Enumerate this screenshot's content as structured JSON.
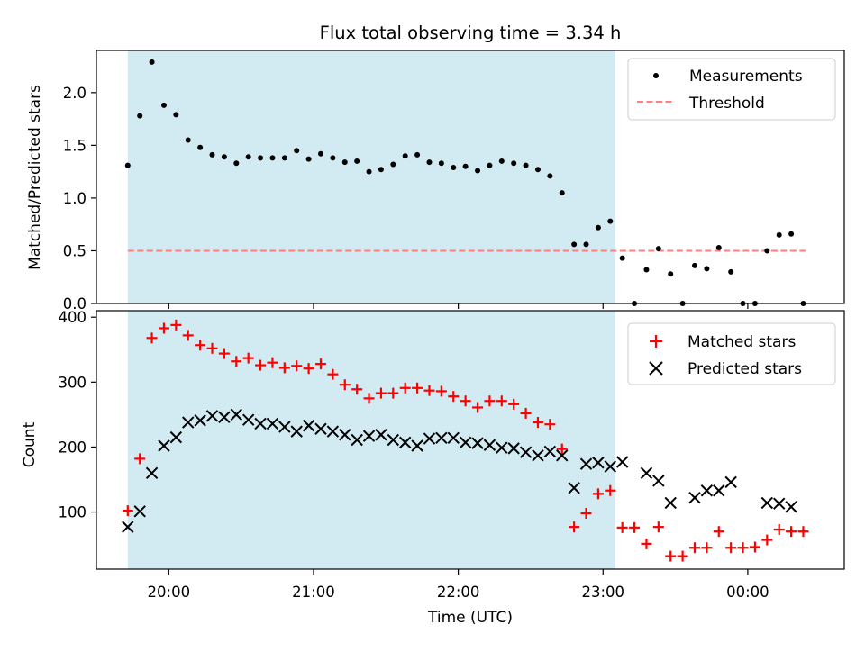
{
  "title": "Flux total observing time = 3.34 h",
  "xlabel": "Time (UTC)",
  "x_tick_labels": [
    "20:00",
    "21:00",
    "22:00",
    "23:00",
    "00:00"
  ],
  "colors": {
    "observing_span": "#add8e6",
    "measurements": "#000000",
    "threshold": "#ff7f7f",
    "matched": "#ff0000",
    "predicted": "#000000"
  },
  "chart_data": [
    {
      "type": "scatter",
      "panel": "top",
      "ylabel": "Matched/Predicted stars",
      "ylim": [
        0.0,
        2.4
      ],
      "y_ticks": [
        "0.0",
        "0.5",
        "1.0",
        "1.5",
        "2.0"
      ],
      "x_range": [
        "19:30",
        "00:40"
      ],
      "shaded_span": [
        "19:43",
        "23:05"
      ],
      "legend_position": "top-right",
      "threshold": {
        "name": "Threshold",
        "value": 0.5,
        "x_range": [
          "19:43",
          "00:25"
        ]
      },
      "series": [
        {
          "name": "Measurements",
          "marker": "dot",
          "x": [
            "19:43",
            "19:48",
            "19:53",
            "19:58",
            "20:03",
            "20:08",
            "20:13",
            "20:18",
            "20:23",
            "20:28",
            "20:33",
            "20:38",
            "20:43",
            "20:48",
            "20:53",
            "20:58",
            "21:03",
            "21:08",
            "21:13",
            "21:18",
            "21:23",
            "21:28",
            "21:33",
            "21:38",
            "21:43",
            "21:48",
            "21:53",
            "21:58",
            "22:03",
            "22:08",
            "22:13",
            "22:18",
            "22:23",
            "22:28",
            "22:33",
            "22:38",
            "22:43",
            "22:48",
            "22:53",
            "22:58",
            "23:03",
            "23:08",
            "23:13",
            "23:18",
            "23:23",
            "23:28",
            "23:33",
            "23:38",
            "23:43",
            "23:48",
            "23:53",
            "23:58",
            "00:03",
            "00:08",
            "00:13",
            "00:18",
            "00:23"
          ],
          "y": [
            1.31,
            1.78,
            2.29,
            1.88,
            1.79,
            1.55,
            1.48,
            1.41,
            1.39,
            1.33,
            1.39,
            1.38,
            1.38,
            1.38,
            1.45,
            1.37,
            1.42,
            1.38,
            1.34,
            1.35,
            1.25,
            1.27,
            1.32,
            1.4,
            1.41,
            1.34,
            1.33,
            1.29,
            1.3,
            1.26,
            1.31,
            1.35,
            1.33,
            1.31,
            1.27,
            1.21,
            1.05,
            0.56,
            0.56,
            0.72,
            0.78,
            0.43,
            0.0,
            0.32,
            0.52,
            0.28,
            0.0,
            0.36,
            0.33,
            0.53,
            0.3,
            0.0,
            0.0,
            0.5,
            0.65,
            0.66,
            0.0
          ]
        }
      ]
    },
    {
      "type": "scatter",
      "panel": "bottom",
      "ylabel": "Count",
      "ylim": [
        12,
        410
      ],
      "y_ticks": [
        "100",
        "200",
        "300",
        "400"
      ],
      "x_range": [
        "19:30",
        "00:40"
      ],
      "shaded_span": [
        "19:43",
        "23:05"
      ],
      "legend_position": "top-right",
      "series": [
        {
          "name": "Matched stars",
          "marker": "plus",
          "x": [
            "19:43",
            "19:48",
            "19:53",
            "19:58",
            "20:03",
            "20:08",
            "20:13",
            "20:18",
            "20:23",
            "20:28",
            "20:33",
            "20:38",
            "20:43",
            "20:48",
            "20:53",
            "20:58",
            "21:03",
            "21:08",
            "21:13",
            "21:18",
            "21:23",
            "21:28",
            "21:33",
            "21:38",
            "21:43",
            "21:48",
            "21:53",
            "21:58",
            "22:03",
            "22:08",
            "22:13",
            "22:18",
            "22:23",
            "22:28",
            "22:33",
            "22:38",
            "22:43",
            "22:48",
            "22:53",
            "22:58",
            "23:03",
            "23:08",
            "23:13",
            "23:18",
            "23:23",
            "23:28",
            "23:33",
            "23:38",
            "23:43",
            "23:48",
            "23:53",
            "23:58",
            "00:03",
            "00:08",
            "00:13",
            "00:18",
            "00:23"
          ],
          "y": [
            102,
            182,
            368,
            383,
            388,
            372,
            357,
            352,
            344,
            332,
            337,
            326,
            330,
            322,
            325,
            321,
            328,
            312,
            296,
            289,
            275,
            283,
            283,
            291,
            291,
            287,
            286,
            278,
            271,
            261,
            271,
            271,
            266,
            252,
            238,
            235,
            197,
            77,
            98,
            128,
            133,
            76,
            76,
            51,
            77,
            32,
            32,
            45,
            45,
            70,
            45,
            45,
            46,
            57,
            73,
            70,
            70
          ]
        },
        {
          "name": "Predicted stars",
          "marker": "x",
          "x": [
            "19:43",
            "19:48",
            "19:53",
            "19:58",
            "20:03",
            "20:08",
            "20:13",
            "20:18",
            "20:23",
            "20:28",
            "20:33",
            "20:38",
            "20:43",
            "20:48",
            "20:53",
            "20:58",
            "21:03",
            "21:08",
            "21:13",
            "21:18",
            "21:23",
            "21:28",
            "21:33",
            "21:38",
            "21:43",
            "21:48",
            "21:53",
            "21:58",
            "22:03",
            "22:08",
            "22:13",
            "22:18",
            "22:23",
            "22:28",
            "22:33",
            "22:38",
            "22:43",
            "22:48",
            "22:53",
            "22:58",
            "23:03",
            "23:08",
            "23:13",
            "23:18",
            "23:23",
            "23:28",
            "23:33",
            "23:38",
            "23:43",
            "23:48",
            "23:53",
            "23:58",
            "00:03",
            "00:08",
            "00:13",
            "00:18",
            "00:23"
          ],
          "y": [
            77,
            101,
            160,
            202,
            215,
            238,
            241,
            248,
            246,
            250,
            242,
            236,
            236,
            231,
            224,
            233,
            228,
            224,
            219,
            211,
            217,
            219,
            211,
            207,
            202,
            213,
            214,
            214,
            207,
            206,
            203,
            199,
            198,
            192,
            187,
            193,
            187,
            137,
            174,
            176,
            170,
            177,
            null,
            160,
            148,
            114,
            null,
            122,
            133,
            133,
            146,
            null,
            null,
            114,
            113,
            108,
            null
          ]
        }
      ]
    }
  ]
}
